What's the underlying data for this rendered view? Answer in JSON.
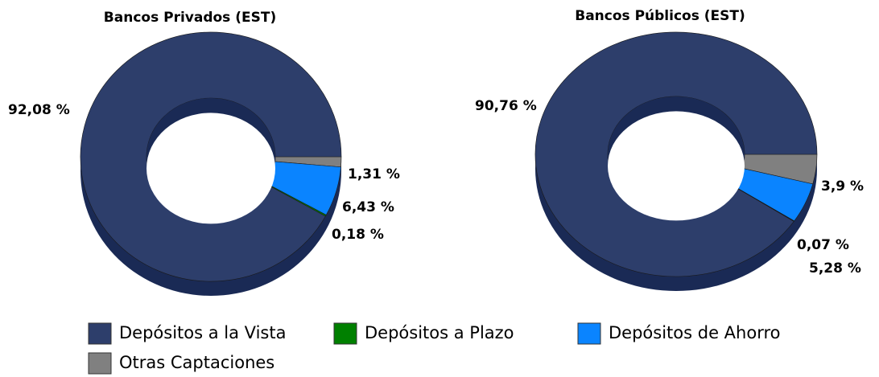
{
  "chart_data": [
    {
      "type": "pie",
      "title": "Bancos Privados (EST)",
      "categories": [
        "Depósitos a la Vista",
        "Depósitos a Plazo",
        "Depósitos de Ahorro",
        "Otras Captaciones"
      ],
      "values": [
        92.08,
        0.18,
        6.43,
        1.31
      ],
      "value_labels": [
        "92,08 %",
        "0,18 %",
        "6,43 %",
        "1,31 %"
      ],
      "colors": [
        "#2d3e6b",
        "#008000",
        "#0a84ff",
        "#808080"
      ]
    },
    {
      "type": "pie",
      "title": "Bancos Públicos (EST)",
      "categories": [
        "Depósitos a la Vista",
        "Depósitos a Plazo",
        "Depósitos de Ahorro",
        "Otras Captaciones"
      ],
      "values": [
        90.76,
        0.07,
        5.28,
        3.9
      ],
      "value_labels": [
        "90,76 %",
        "0,07 %",
        "5,28 %",
        "3,9 %"
      ],
      "colors": [
        "#2d3e6b",
        "#008000",
        "#0a84ff",
        "#808080"
      ]
    }
  ]
}
